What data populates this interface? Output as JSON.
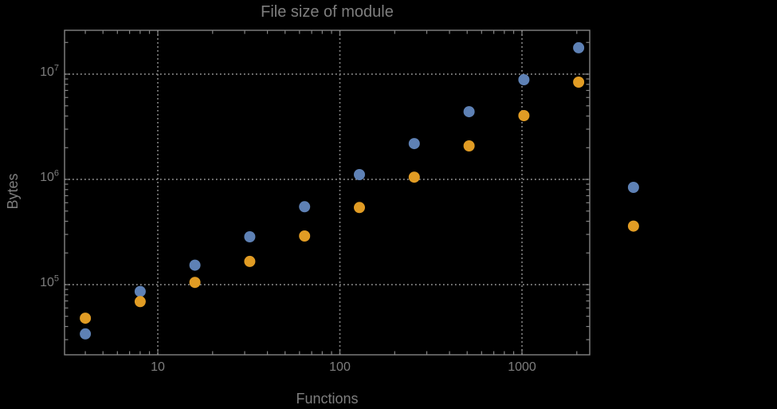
{
  "chart_data": {
    "type": "scatter",
    "title": "File size of module",
    "xlabel": "Functions",
    "ylabel": "Bytes",
    "x_scale": "log",
    "y_scale": "log",
    "grid": "dotted",
    "legend": "none",
    "x_tick_values": [
      10,
      100,
      1000
    ],
    "x_tick_labels": [
      "10",
      "100",
      "1000"
    ],
    "y_tick_base": "10",
    "y_tick_exponents": [
      5,
      6,
      7
    ],
    "x_frame_range": [
      3.1,
      2370
    ],
    "y_frame_range": [
      22500,
      26000000
    ],
    "colors": {
      "background": "#000000",
      "frame": "#848484",
      "grid": "#8a8a8a",
      "text": "#7e7e7e",
      "series1": "#5e81b5",
      "series2": "#e19c24"
    },
    "series": [
      {
        "name": "series-1-blue",
        "color_key": "series1",
        "points": [
          [
            4,
            34000
          ],
          [
            8,
            86000
          ],
          [
            16,
            153000
          ],
          [
            32,
            285000
          ],
          [
            64,
            550000
          ],
          [
            128,
            1110000
          ],
          [
            256,
            2190000
          ],
          [
            512,
            4400000
          ],
          [
            1024,
            8850000
          ],
          [
            2048,
            17800000
          ],
          [
            4096,
            840000
          ]
        ]
      },
      {
        "name": "series-2-orange",
        "color_key": "series2",
        "points": [
          [
            4,
            48000
          ],
          [
            8,
            69000
          ],
          [
            16,
            105000
          ],
          [
            32,
            166000
          ],
          [
            64,
            290000
          ],
          [
            128,
            540000
          ],
          [
            256,
            1050000
          ],
          [
            512,
            2080000
          ],
          [
            1024,
            4040000
          ],
          [
            2048,
            8400000
          ],
          [
            4096,
            360000
          ]
        ]
      }
    ]
  }
}
